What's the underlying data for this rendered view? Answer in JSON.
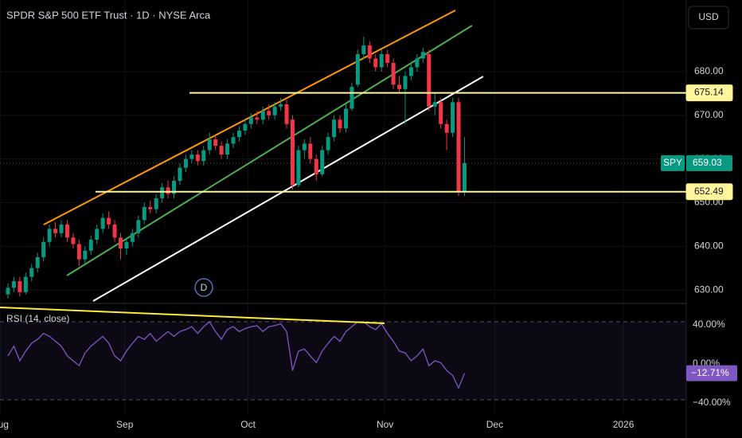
{
  "header": {
    "title": "SPDR S&P 500 ETF Trust · 1D · NYSE Arca",
    "currency": "USD"
  },
  "chart_data": [
    {
      "type": "candlestick",
      "symbol": "SPY",
      "dividend_marker": "D",
      "up_color": "#089981",
      "down_color": "#f23645",
      "open": [
        629,
        630.5,
        632,
        629.5,
        633,
        635,
        637.5,
        641,
        644,
        643,
        645,
        642,
        640.5,
        637,
        639,
        641.5,
        644,
        646.5,
        645,
        642,
        639.5,
        641,
        643,
        646,
        649,
        648.5,
        651,
        653.5,
        652,
        655,
        658,
        660,
        661,
        659.5,
        662,
        664.5,
        663,
        661,
        663.5,
        665,
        666.5,
        668,
        669.5,
        669,
        671,
        670,
        672,
        672.5,
        669,
        654,
        662,
        663.5,
        660,
        656.5,
        662,
        665,
        669,
        667,
        671.5,
        677,
        684,
        686,
        683,
        681,
        684,
        682,
        677,
        676,
        679,
        681,
        683,
        684,
        672,
        673,
        668,
        666,
        673,
        652.5
      ],
      "high": [
        631.5,
        633,
        633,
        634,
        636,
        638.5,
        642,
        645,
        645.5,
        646,
        646,
        643,
        641.5,
        640,
        642.5,
        645,
        647.5,
        648,
        646,
        643,
        642,
        644,
        647,
        650,
        650.5,
        652,
        654.5,
        655,
        656,
        659,
        661,
        662,
        662,
        663,
        666,
        665.5,
        664,
        664.5,
        666,
        667.5,
        669,
        670.5,
        671,
        672,
        672.5,
        673,
        674,
        673.5,
        670,
        663,
        664.5,
        665,
        661,
        663,
        666,
        670,
        670,
        672.5,
        677.5,
        685,
        688,
        687,
        684,
        685,
        685,
        683,
        679,
        680,
        682,
        684,
        685.5,
        685,
        675,
        674,
        669,
        674,
        674,
        665
      ],
      "low": [
        628,
        629.5,
        628.5,
        629,
        632,
        634,
        636.5,
        640,
        642,
        642,
        641,
        639.5,
        635.5,
        636,
        638,
        640.5,
        643,
        644,
        641,
        637,
        638,
        640,
        642,
        645,
        647.5,
        647.5,
        650,
        651,
        651,
        654,
        657,
        659,
        658.5,
        658.5,
        661,
        662,
        660,
        660,
        662.5,
        664,
        665.5,
        667,
        668,
        668,
        669,
        669,
        671,
        667,
        653,
        653.5,
        660,
        659,
        655,
        656,
        661,
        664,
        666,
        666,
        671,
        676.5,
        683,
        682,
        680,
        680,
        681,
        676,
        675,
        668,
        678,
        680,
        682,
        671,
        670,
        667,
        662,
        665,
        651.5,
        651.5
      ],
      "close": [
        630.5,
        632,
        629.5,
        633,
        635,
        637.5,
        641,
        644,
        643,
        645,
        642,
        640.5,
        637,
        639,
        641.5,
        644,
        646.5,
        645,
        642,
        639.5,
        641,
        643,
        646,
        649,
        648.5,
        651,
        653.5,
        652,
        655,
        658,
        660,
        661,
        659.5,
        662,
        664.5,
        663,
        661,
        663.5,
        665,
        666.5,
        668,
        669.5,
        669,
        671,
        670,
        672,
        672.5,
        668,
        654,
        662,
        663.5,
        660,
        656.5,
        662,
        665,
        669,
        667,
        671.5,
        676.5,
        684,
        686,
        683,
        681,
        684,
        682,
        677,
        676,
        679,
        681,
        683,
        684.5,
        672,
        673,
        668,
        666,
        673,
        652.5,
        659.03
      ],
      "last_price": 659.03,
      "levels": [
        675.14,
        652.49
      ],
      "level_color": "#fff59d",
      "ylim": [
        627.1,
        696.4
      ],
      "yticks": [
        {
          "value": 630,
          "label": "630.00"
        },
        {
          "value": 640,
          "label": "640.00"
        },
        {
          "value": 650,
          "label": "650.00"
        },
        {
          "value": 660,
          "label": "660.00"
        },
        {
          "value": 670,
          "label": "670.00"
        },
        {
          "value": 680,
          "label": "680.00"
        }
      ],
      "xlim": [
        -1.34,
        114.4
      ],
      "xticks": [
        {
          "value": -1.3,
          "label": "Aug"
        },
        {
          "value": 19.7,
          "label": "Sep"
        },
        {
          "value": 40.5,
          "label": "Oct"
        },
        {
          "value": 63.6,
          "label": "Nov"
        },
        {
          "value": 82.1,
          "label": "Dec"
        },
        {
          "value": 103.8,
          "label": "2026"
        }
      ],
      "grid": true
    },
    {
      "type": "line",
      "title": "RSI (14, close)",
      "series": [
        {
          "color": "#7e57c2",
          "values": [
            5,
            15,
            0,
            10,
            18,
            22,
            28,
            25,
            20,
            15,
            5,
            0,
            -5,
            8,
            15,
            20,
            25,
            18,
            5,
            0,
            10,
            18,
            25,
            22,
            28,
            20,
            25,
            30,
            25,
            30,
            32,
            35,
            28,
            35,
            40,
            30,
            22,
            32,
            35,
            30,
            33,
            35,
            36,
            30,
            35,
            36,
            38,
            30,
            -10,
            10,
            12,
            5,
            -2,
            10,
            18,
            25,
            20,
            30,
            35,
            40,
            40,
            35,
            32,
            38,
            28,
            20,
            10,
            8,
            0,
            5,
            12,
            -5,
            0,
            -2,
            -10,
            -15,
            -28,
            -12.71
          ]
        }
      ],
      "last_value": -12.71,
      "last_label": "−12.71%",
      "ylim": [
        -54.7,
        58
      ],
      "yticks": [
        {
          "value": 40,
          "label": "40.00%"
        },
        {
          "value": 0,
          "label": "0.00%"
        },
        {
          "value": -40,
          "label": "−40.00%"
        }
      ]
    }
  ]
}
